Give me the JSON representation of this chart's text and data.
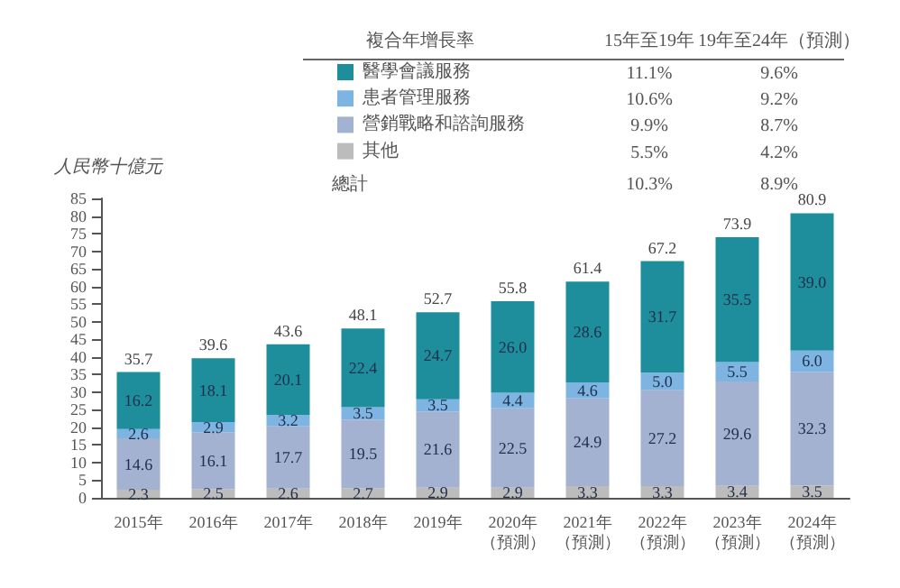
{
  "chart_data": {
    "type": "bar",
    "stacked": true,
    "ylabel": "人民幣十億元",
    "categories": [
      "2015年",
      "2016年",
      "2017年",
      "2018年",
      "2019年",
      "2020年（預測）",
      "2021年（預測）",
      "2022年（預測）",
      "2023年（預測）",
      "2024年（預測）"
    ],
    "series": [
      {
        "name": "其他",
        "color": "#bcbcbc",
        "values": [
          2.3,
          2.5,
          2.6,
          2.7,
          2.9,
          2.9,
          3.3,
          3.3,
          3.4,
          3.5
        ]
      },
      {
        "name": "營銷戰略和諮詢服務",
        "color": "#a2b2d0",
        "values": [
          14.6,
          16.1,
          17.7,
          19.5,
          21.6,
          22.5,
          24.9,
          27.2,
          29.6,
          32.3
        ]
      },
      {
        "name": "患者管理服務",
        "color": "#7eb4e2",
        "values": [
          2.6,
          2.9,
          3.2,
          3.5,
          3.5,
          4.4,
          4.6,
          5.0,
          5.5,
          6.0
        ],
        "value_labels": [
          "2.6",
          "2.9",
          "3.2",
          "3.5",
          "3.5",
          "4.4",
          "4.6",
          "5.0",
          "5.5",
          "6.0"
        ]
      },
      {
        "name": "醫學會議服務",
        "color": "#1e8e9c",
        "values": [
          16.2,
          18.1,
          20.1,
          22.4,
          24.7,
          26.0,
          28.6,
          31.7,
          35.5,
          39.0
        ],
        "value_labels": [
          "16.2",
          "18.1",
          "20.1",
          "22.4",
          "24.7",
          "26.0",
          "28.6",
          "31.7",
          "35.5",
          "39.0"
        ]
      }
    ],
    "totals": [
      "35.7",
      "39.6",
      "43.6",
      "48.1",
      "52.7",
      "55.8",
      "61.4",
      "67.2",
      "73.9",
      "80.9"
    ],
    "data_labels": true,
    "ylim": [
      0,
      85
    ],
    "yticks": [
      0,
      5,
      10,
      15,
      20,
      25,
      30,
      35,
      40,
      45,
      50,
      55,
      60,
      65,
      70,
      75,
      80,
      85
    ],
    "grid": false,
    "legend": "top",
    "annotations": [
      "複合年增長率",
      "15年至19年",
      "19年至24年（預測）",
      "11.1%",
      "9.6%",
      "10.6%",
      "9.2%",
      "9.9%",
      "8.7%",
      "5.5%",
      "4.2%",
      "總計",
      "10.3%",
      "8.9%"
    ]
  }
}
